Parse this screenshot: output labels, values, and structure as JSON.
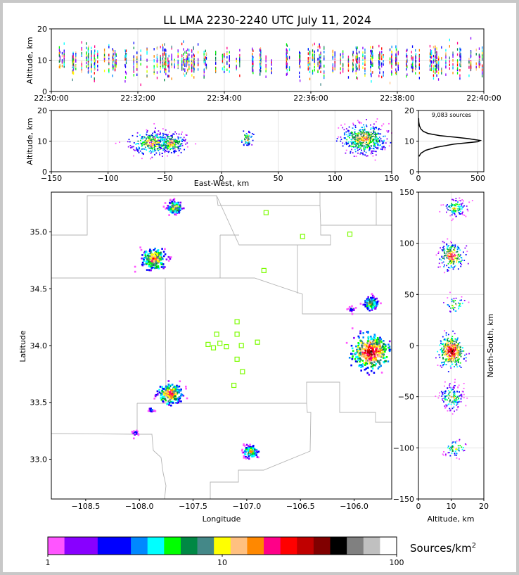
{
  "title": "LL LMA 2230-2240 UTC July 11, 2024",
  "chart_data": [
    {
      "type": "scatter",
      "panel": "altitude-time",
      "xlabel": "",
      "ylabel": "Altitude, km",
      "xticks": [
        "22:30:00",
        "22:32:00",
        "22:34:00",
        "22:36:00",
        "22:38:00",
        "22:40:00"
      ],
      "xlim": [
        "22:30:00",
        "22:40:00"
      ],
      "ylim": [
        0,
        20
      ],
      "yticks": [
        0,
        10,
        20
      ]
    },
    {
      "type": "scatter",
      "panel": "altitude-eastwest",
      "xlabel": "East-West, km",
      "ylabel": "Altitude, km",
      "xlim": [
        -150,
        150
      ],
      "ylim": [
        0,
        20
      ],
      "xticks": [
        -150,
        -100,
        -50,
        0,
        50,
        100,
        150
      ],
      "yticks": [
        0,
        10,
        20
      ],
      "clusters": [
        {
          "x_center": -62,
          "z_center": 9.5
        },
        {
          "x_center": -45,
          "z_center": 9.5
        },
        {
          "x_center": 22,
          "z_center": 11
        },
        {
          "x_center": 125,
          "z_center": 11
        }
      ]
    },
    {
      "type": "line",
      "panel": "altitude-histogram",
      "annotation": "9,083 sources",
      "xlim": [
        0,
        550
      ],
      "ylim": [
        0,
        20
      ],
      "xticks": [
        0,
        500
      ],
      "yticks": [
        0,
        10,
        20
      ],
      "profile": [
        {
          "count": 5,
          "alt": 5.0
        },
        {
          "count": 20,
          "alt": 6.0
        },
        {
          "count": 60,
          "alt": 7.0
        },
        {
          "count": 150,
          "alt": 8.0
        },
        {
          "count": 300,
          "alt": 9.0
        },
        {
          "count": 500,
          "alt": 9.8
        },
        {
          "count": 520,
          "alt": 10.2
        },
        {
          "count": 420,
          "alt": 10.8
        },
        {
          "count": 300,
          "alt": 11.3
        },
        {
          "count": 180,
          "alt": 11.8
        },
        {
          "count": 80,
          "alt": 12.5
        },
        {
          "count": 40,
          "alt": 13.2
        },
        {
          "count": 20,
          "alt": 14.0
        },
        {
          "count": 8,
          "alt": 15.0
        },
        {
          "count": 3,
          "alt": 16.2
        },
        {
          "count": 2,
          "alt": 17.5
        }
      ]
    },
    {
      "type": "heatmap",
      "panel": "plan-view",
      "xlabel": "Longitude",
      "ylabel": "Latitude",
      "xlim": [
        -108.82,
        -105.65
      ],
      "ylim": [
        32.65,
        35.35
      ],
      "xticks": [
        -108.5,
        -108.0,
        -107.5,
        -107.0,
        -106.5,
        -106.0
      ],
      "yticks": [
        33.0,
        33.5,
        34.0,
        34.5,
        35.0
      ],
      "clusters": [
        {
          "lon": -107.68,
          "lat": 35.22,
          "size": "small"
        },
        {
          "lon": -107.87,
          "lat": 34.77,
          "size": "medium"
        },
        {
          "lon": -105.85,
          "lat": 34.38,
          "size": "small"
        },
        {
          "lon": -106.03,
          "lat": 34.33,
          "size": "tiny"
        },
        {
          "lon": -105.85,
          "lat": 33.95,
          "size": "large"
        },
        {
          "lon": -107.72,
          "lat": 33.58,
          "size": "medium"
        },
        {
          "lon": -107.9,
          "lat": 33.44,
          "size": "tiny"
        },
        {
          "lon": -108.05,
          "lat": 33.24,
          "size": "tiny"
        },
        {
          "lon": -106.97,
          "lat": 33.07,
          "size": "small"
        }
      ],
      "stations": [
        {
          "lon": -106.82,
          "lat": 35.17
        },
        {
          "lon": -106.48,
          "lat": 34.96
        },
        {
          "lon": -106.04,
          "lat": 34.98
        },
        {
          "lon": -106.84,
          "lat": 34.66
        },
        {
          "lon": -107.09,
          "lat": 34.21
        },
        {
          "lon": -107.28,
          "lat": 34.1
        },
        {
          "lon": -107.09,
          "lat": 34.1
        },
        {
          "lon": -107.36,
          "lat": 34.01
        },
        {
          "lon": -107.25,
          "lat": 34.02
        },
        {
          "lon": -106.9,
          "lat": 34.03
        },
        {
          "lon": -107.31,
          "lat": 33.98
        },
        {
          "lon": -107.19,
          "lat": 33.99
        },
        {
          "lon": -107.05,
          "lat": 34.0
        },
        {
          "lon": -107.09,
          "lat": 33.88
        },
        {
          "lon": -107.04,
          "lat": 33.77
        },
        {
          "lon": -107.12,
          "lat": 33.65
        }
      ]
    },
    {
      "type": "scatter",
      "panel": "northsouth-altitude",
      "xlabel": "Altitude, km",
      "ylabel": "North-South, km",
      "xlim": [
        0,
        20
      ],
      "ylim": [
        -150,
        150
      ],
      "xticks": [
        0,
        10,
        20
      ],
      "yticks": [
        -150,
        -100,
        -50,
        0,
        50,
        100,
        150
      ],
      "clusters": [
        {
          "ns": 135,
          "alt": 11
        },
        {
          "ns": 88,
          "alt": 10
        },
        {
          "ns": 40,
          "alt": 11
        },
        {
          "ns": -5,
          "alt": 10
        },
        {
          "ns": -50,
          "alt": 10
        },
        {
          "ns": -100,
          "alt": 11
        }
      ]
    }
  ],
  "colorbar": {
    "label": "Sources/km",
    "label_sup": "2",
    "tick_labels": [
      "1",
      "10",
      "100"
    ],
    "colors": [
      "#ff55ff",
      "#8800ff",
      "#8800ff",
      "#0000ff",
      "#0000ff",
      "#0088ff",
      "#00ffff",
      "#00ff00",
      "#008844",
      "#448888",
      "#ffff00",
      "#ffc080",
      "#ff8800",
      "#ff0088",
      "#ff0000",
      "#c00000",
      "#800000",
      "#000000",
      "#808080",
      "#c0c0c0",
      "#ffffff"
    ]
  },
  "colors": {
    "station": "#7cfc00",
    "grid": "#e3e3e3",
    "boundary": "#b4b4b4"
  }
}
